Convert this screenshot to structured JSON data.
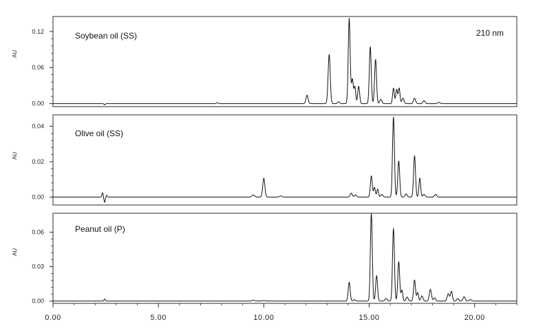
{
  "chart_data": [
    {
      "type": "line",
      "title": "Soybean oil (SS)",
      "annotation": "210 nm",
      "ylabel": "AU",
      "xlim": [
        0,
        22
      ],
      "ylim": [
        -0.005,
        0.145
      ],
      "yticks": [
        0.0,
        0.06,
        0.12
      ],
      "ytick_labels": [
        "0.00",
        "0.06",
        "0.12"
      ],
      "peaks": [
        {
          "x": 2.45,
          "y": -0.002,
          "w": 0.03
        },
        {
          "x": 7.8,
          "y": 0.0015,
          "w": 0.05
        },
        {
          "x": 12.05,
          "y": 0.014,
          "w": 0.05
        },
        {
          "x": 13.1,
          "y": 0.082,
          "w": 0.05
        },
        {
          "x": 13.55,
          "y": 0.003,
          "w": 0.05
        },
        {
          "x": 14.05,
          "y": 0.142,
          "w": 0.045
        },
        {
          "x": 14.2,
          "y": 0.041,
          "w": 0.045
        },
        {
          "x": 14.32,
          "y": 0.028,
          "w": 0.04
        },
        {
          "x": 14.5,
          "y": 0.029,
          "w": 0.045
        },
        {
          "x": 15.05,
          "y": 0.095,
          "w": 0.045
        },
        {
          "x": 15.3,
          "y": 0.074,
          "w": 0.045
        },
        {
          "x": 15.55,
          "y": 0.007,
          "w": 0.05
        },
        {
          "x": 16.15,
          "y": 0.026,
          "w": 0.04
        },
        {
          "x": 16.3,
          "y": 0.024,
          "w": 0.04
        },
        {
          "x": 16.42,
          "y": 0.026,
          "w": 0.04
        },
        {
          "x": 16.6,
          "y": 0.009,
          "w": 0.05
        },
        {
          "x": 17.15,
          "y": 0.009,
          "w": 0.05
        },
        {
          "x": 17.6,
          "y": 0.005,
          "w": 0.05
        },
        {
          "x": 18.3,
          "y": 0.002,
          "w": 0.06
        }
      ]
    },
    {
      "type": "line",
      "title": "Olive oil (SS)",
      "ylabel": "AU",
      "xlim": [
        0,
        22
      ],
      "ylim": [
        -0.0045,
        0.0465
      ],
      "yticks": [
        0.0,
        0.02,
        0.04
      ],
      "ytick_labels": [
        "0.00",
        "0.02",
        "0.04"
      ],
      "peaks": [
        {
          "x": 2.35,
          "y": 0.0025,
          "w": 0.03
        },
        {
          "x": 2.45,
          "y": -0.003,
          "w": 0.03
        },
        {
          "x": 2.55,
          "y": 0.001,
          "w": 0.03
        },
        {
          "x": 9.5,
          "y": 0.0012,
          "w": 0.06
        },
        {
          "x": 10.0,
          "y": 0.0107,
          "w": 0.05
        },
        {
          "x": 10.8,
          "y": 0.0006,
          "w": 0.06
        },
        {
          "x": 14.15,
          "y": 0.0022,
          "w": 0.05
        },
        {
          "x": 14.35,
          "y": 0.0012,
          "w": 0.05
        },
        {
          "x": 15.1,
          "y": 0.012,
          "w": 0.045
        },
        {
          "x": 15.25,
          "y": 0.0055,
          "w": 0.04
        },
        {
          "x": 15.4,
          "y": 0.0045,
          "w": 0.04
        },
        {
          "x": 15.6,
          "y": 0.0015,
          "w": 0.05
        },
        {
          "x": 16.15,
          "y": 0.0455,
          "w": 0.045
        },
        {
          "x": 16.4,
          "y": 0.0205,
          "w": 0.045
        },
        {
          "x": 16.75,
          "y": 0.0018,
          "w": 0.05
        },
        {
          "x": 17.15,
          "y": 0.0235,
          "w": 0.045
        },
        {
          "x": 17.4,
          "y": 0.0108,
          "w": 0.04
        },
        {
          "x": 17.6,
          "y": 0.0015,
          "w": 0.05
        },
        {
          "x": 18.15,
          "y": 0.0015,
          "w": 0.05
        }
      ]
    },
    {
      "type": "line",
      "title": "Peanut oil (P)",
      "ylabel": "AU",
      "xlim": [
        0,
        22
      ],
      "ylim": [
        -0.002,
        0.0765
      ],
      "yticks": [
        0.0,
        0.03,
        0.06
      ],
      "ytick_labels": [
        "0.00",
        "0.03",
        "0.06"
      ],
      "xticks": [
        0,
        5,
        10,
        15,
        20
      ],
      "xtick_labels": [
        "0.00",
        "5.00",
        "10.00",
        "15.00",
        "20.00"
      ],
      "peaks": [
        {
          "x": 2.45,
          "y": 0.0018,
          "w": 0.03
        },
        {
          "x": 9.5,
          "y": 0.0008,
          "w": 0.06
        },
        {
          "x": 10.0,
          "y": 0.0005,
          "w": 0.06
        },
        {
          "x": 14.05,
          "y": 0.0165,
          "w": 0.045
        },
        {
          "x": 14.3,
          "y": 0.0012,
          "w": 0.05
        },
        {
          "x": 15.1,
          "y": 0.0765,
          "w": 0.045
        },
        {
          "x": 15.35,
          "y": 0.0222,
          "w": 0.045
        },
        {
          "x": 15.8,
          "y": 0.0022,
          "w": 0.05
        },
        {
          "x": 16.15,
          "y": 0.0635,
          "w": 0.045
        },
        {
          "x": 16.4,
          "y": 0.0345,
          "w": 0.045
        },
        {
          "x": 16.55,
          "y": 0.0095,
          "w": 0.04
        },
        {
          "x": 16.8,
          "y": 0.0035,
          "w": 0.05
        },
        {
          "x": 17.15,
          "y": 0.0185,
          "w": 0.045
        },
        {
          "x": 17.3,
          "y": 0.0075,
          "w": 0.04
        },
        {
          "x": 17.5,
          "y": 0.0045,
          "w": 0.05
        },
        {
          "x": 17.9,
          "y": 0.0102,
          "w": 0.05
        },
        {
          "x": 18.1,
          "y": 0.0028,
          "w": 0.05
        },
        {
          "x": 18.75,
          "y": 0.0065,
          "w": 0.05
        },
        {
          "x": 18.9,
          "y": 0.0085,
          "w": 0.045
        },
        {
          "x": 19.2,
          "y": 0.0022,
          "w": 0.05
        },
        {
          "x": 19.5,
          "y": 0.0038,
          "w": 0.05
        },
        {
          "x": 19.8,
          "y": 0.0012,
          "w": 0.06
        }
      ]
    }
  ]
}
